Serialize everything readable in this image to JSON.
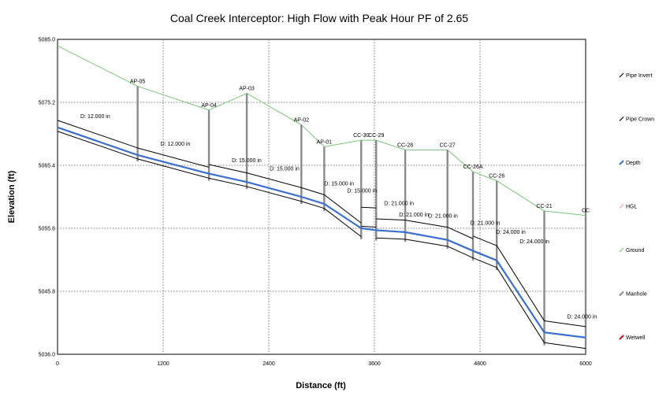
{
  "chart_data": {
    "type": "line",
    "title": "Coal Creek Interceptor:  High Flow with Peak Hour PF of 2.65",
    "xlabel": "Distance (ft)",
    "ylabel": "Elevation (ft)",
    "xlim": [
      0,
      6000
    ],
    "ylim": [
      5036.0,
      5085.0
    ],
    "x_ticks": [
      0,
      1200,
      2400,
      3600,
      4800,
      6000
    ],
    "y_ticks": [
      "5036.0",
      "5045.8",
      "5055.6",
      "5065.4",
      "5075.2",
      "5085.0"
    ],
    "grid": true,
    "legend_position": "right",
    "legend": [
      {
        "name": "Pipe Invert",
        "color": "#000000"
      },
      {
        "name": "Pipe Crown",
        "color": "#000000"
      },
      {
        "name": "Depth",
        "color": "#3a6fd0"
      },
      {
        "name": "HGL",
        "color": "#f2a0a0"
      },
      {
        "name": "Ground",
        "color": "#78c878"
      },
      {
        "name": "Manhole",
        "color": "#8a8a8a"
      },
      {
        "name": "Wetwell",
        "color": "#c01010"
      }
    ],
    "colors": {
      "pipe": "#000000",
      "depth": "#3a6fd0",
      "ground": "#78c878",
      "manhole": "#8a8a8a",
      "wetwell": "#c01010",
      "grid": "#555555"
    },
    "manholes": [
      {
        "label": "",
        "x": 0,
        "ground": 5084.0
      },
      {
        "label": "AP-05",
        "x": 910,
        "ground": 5077.7
      },
      {
        "label": "AP-04",
        "x": 1720,
        "ground": 5074.0
      },
      {
        "label": "AP-03",
        "x": 2150,
        "ground": 5076.6
      },
      {
        "label": "AP-02",
        "x": 2770,
        "ground": 5071.7
      },
      {
        "label": "AP-01",
        "x": 3030,
        "ground": 5068.3
      },
      {
        "label": "CC-30",
        "x": 3450,
        "ground": 5069.3
      },
      {
        "label": "CC-29",
        "x": 3620,
        "ground": 5069.3
      },
      {
        "label": "CC-28",
        "x": 3950,
        "ground": 5067.8
      },
      {
        "label": "CC-27",
        "x": 4430,
        "ground": 5067.8
      },
      {
        "label": "CC-26A",
        "x": 4720,
        "ground": 5064.4
      },
      {
        "label": "CC-26",
        "x": 4990,
        "ground": 5063.0
      },
      {
        "label": "CC-21",
        "x": 5530,
        "ground": 5058.3
      },
      {
        "label": "CC",
        "x": 6000,
        "ground": 5057.6
      }
    ],
    "pipes": [
      {
        "label": "D: 12.000 in",
        "x1": 0,
        "inv1": 5070.7,
        "x2": 910,
        "inv2": 5066.4,
        "dia_ft": 1.0
      },
      {
        "label": "D: 12.000 in",
        "x1": 910,
        "inv1": 5066.4,
        "x2": 1720,
        "inv2": 5063.4,
        "dia_ft": 1.0
      },
      {
        "label": "D: 15.000 in",
        "x1": 1720,
        "inv1": 5063.4,
        "x2": 2150,
        "inv2": 5062.1,
        "dia_ft": 1.25
      },
      {
        "label": "D: 15.000 in",
        "x1": 2150,
        "inv1": 5062.1,
        "x2": 2770,
        "inv2": 5059.8,
        "dia_ft": 1.25
      },
      {
        "label": "D: 15.000 in",
        "x1": 2770,
        "inv1": 5059.8,
        "x2": 3030,
        "inv2": 5058.7,
        "dia_ft": 1.25
      },
      {
        "label": "D: 15.000 in",
        "x1": 3030,
        "inv1": 5058.7,
        "x2": 3450,
        "inv2": 5054.3,
        "dia_ft": 1.25
      },
      {
        "label": "D: 21.000 in",
        "x1": 3450,
        "inv1": 5055.9,
        "x2": 3620,
        "inv2": 5055.8,
        "dia_ft": 1.75
      },
      {
        "label": "D: 21.000 in",
        "x1": 3620,
        "inv1": 5054.1,
        "x2": 3950,
        "inv2": 5053.9,
        "dia_ft": 1.75
      },
      {
        "label": "D: 21.000 in",
        "x1": 3950,
        "inv1": 5053.9,
        "x2": 4430,
        "inv2": 5052.8,
        "dia_ft": 1.75
      },
      {
        "label": "D: 21.000 in",
        "x1": 4430,
        "inv1": 5052.8,
        "x2": 4720,
        "inv2": 5051.0,
        "dia_ft": 1.75
      },
      {
        "label": "D: 24.000 in",
        "x1": 4720,
        "inv1": 5051.0,
        "x2": 4990,
        "inv2": 5049.5,
        "dia_ft": 2.0
      },
      {
        "label": "D: 24.000 in",
        "x1": 4990,
        "inv1": 5049.5,
        "x2": 5530,
        "inv2": 5037.8,
        "dia_ft": 2.0
      },
      {
        "label": "D: 24.000 in",
        "x1": 5530,
        "inv1": 5037.8,
        "x2": 6000,
        "inv2": 5036.9,
        "dia_ft": 2.0
      }
    ],
    "depth_profile": [
      {
        "x": 0,
        "y": 5071.3
      },
      {
        "x": 910,
        "y": 5067.0
      },
      {
        "x": 1720,
        "y": 5064.1
      },
      {
        "x": 2150,
        "y": 5062.8
      },
      {
        "x": 2770,
        "y": 5060.5
      },
      {
        "x": 3030,
        "y": 5059.4
      },
      {
        "x": 3450,
        "y": 5055.6
      },
      {
        "x": 3620,
        "y": 5055.3
      },
      {
        "x": 3950,
        "y": 5055.0
      },
      {
        "x": 4430,
        "y": 5053.8
      },
      {
        "x": 4720,
        "y": 5052.1
      },
      {
        "x": 4990,
        "y": 5050.6
      },
      {
        "x": 5530,
        "y": 5039.4
      },
      {
        "x": 6000,
        "y": 5038.6
      }
    ]
  }
}
